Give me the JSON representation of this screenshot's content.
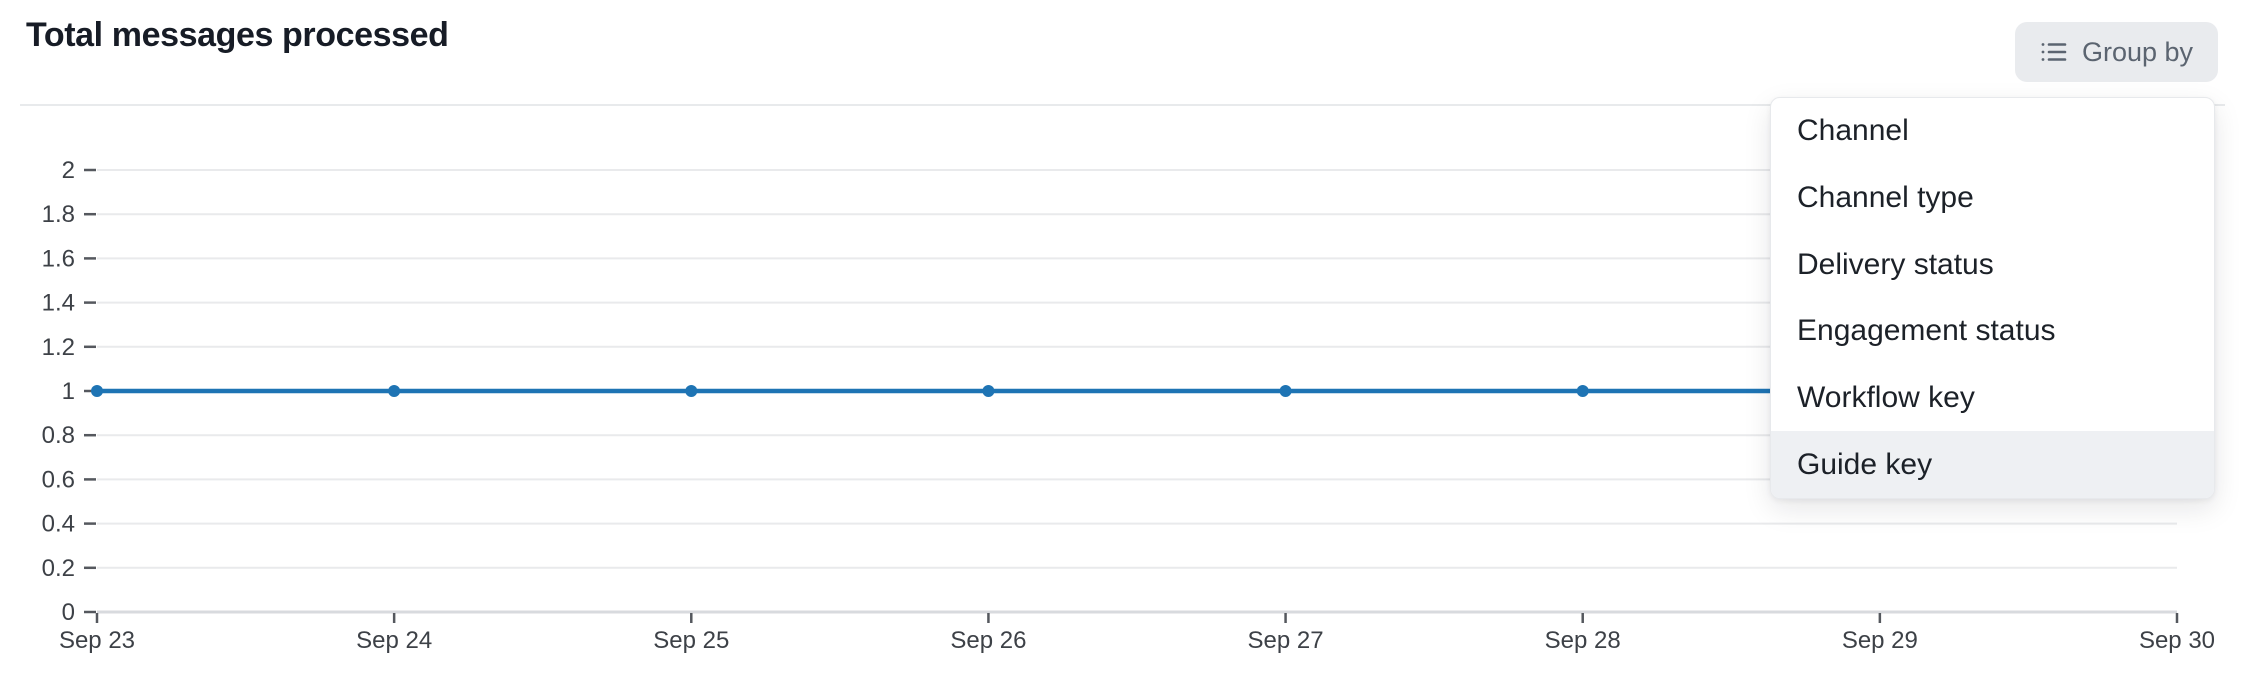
{
  "header": {
    "title": "Total messages processed",
    "group_by": {
      "label": "Group by"
    }
  },
  "dropdown": {
    "items": [
      {
        "label": "Channel",
        "highlighted": false
      },
      {
        "label": "Channel type",
        "highlighted": false
      },
      {
        "label": "Delivery status",
        "highlighted": false
      },
      {
        "label": "Engagement status",
        "highlighted": false
      },
      {
        "label": "Workflow key",
        "highlighted": false
      },
      {
        "label": "Guide key",
        "highlighted": true
      }
    ]
  },
  "chart_data": {
    "type": "line",
    "title": "Total messages processed",
    "x": [
      "Sep 23",
      "Sep 24",
      "Sep 25",
      "Sep 26",
      "Sep 27",
      "Sep 28",
      "Sep 29",
      "Sep 30"
    ],
    "series": [
      {
        "name": "Total messages processed",
        "values": [
          1,
          1,
          1,
          1,
          1,
          1,
          1,
          1
        ]
      }
    ],
    "ylim": [
      0,
      2
    ],
    "yticks": [
      0,
      0.2,
      0.4,
      0.6,
      0.8,
      1,
      1.2,
      1.4,
      1.6,
      1.8,
      2
    ],
    "ytick_labels": [
      "0",
      "0.2",
      "0.4",
      "0.6",
      "0.8",
      "1",
      "1.2",
      "1.4",
      "1.6",
      "1.8",
      "2"
    ],
    "grid": true,
    "legend": false,
    "line_color": "#1e74b4",
    "marker": "circle"
  },
  "colors": {
    "accent_blue": "#1e74b4",
    "grid": "#e9eaec",
    "axis_line": "#d8dade",
    "tick": "#55585e",
    "axis_label": "#3d4147",
    "title_text": "#171c26",
    "button_bg": "#e9ebee",
    "button_text": "#5b6470",
    "menu_bg": "#ffffff",
    "menu_border": "#e7e9ec",
    "menu_text": "#1c2128",
    "menu_highlight_bg": "#eef0f3",
    "divider": "#e8eaec"
  }
}
